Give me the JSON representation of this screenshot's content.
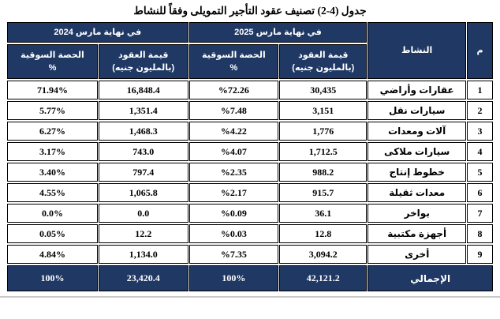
{
  "page": {
    "title": "جدول (4-2) تصنيف عقود التأجير التمويلى وفقاً للنشاط"
  },
  "table": {
    "headers": {
      "serial": "م",
      "activity": "النشاط",
      "period_2025": "في نهاية مارس 2025",
      "period_2024": "في نهاية مارس 2024",
      "value_line1": "قيمة العقود",
      "value_line2": "(بالمليون جنيه)",
      "share_line1": "الحصة السوقية",
      "share_line2": "%"
    },
    "rows": [
      {
        "no": "1",
        "activity": "عقارات وأراضي",
        "value_2025": "30,435",
        "share_2025": "%72.26",
        "value_2024": "16,848.4",
        "share_2024": "71.94%"
      },
      {
        "no": "2",
        "activity": "سيارات نقل",
        "value_2025": "3,151",
        "share_2025": "%7.48",
        "value_2024": "1,351.4",
        "share_2024": "5.77%"
      },
      {
        "no": "3",
        "activity": "آلات ومعدات",
        "value_2025": "1,776",
        "share_2025": "%4.22",
        "value_2024": "1,468.3",
        "share_2024": "6.27%"
      },
      {
        "no": "4",
        "activity": "سيارات ملاكى",
        "value_2025": "1,712.5",
        "share_2025": "%4.07",
        "value_2024": "743.0",
        "share_2024": "3.17%"
      },
      {
        "no": "5",
        "activity": "خطوط إنتاج",
        "value_2025": "988.2",
        "share_2025": "%2.35",
        "value_2024": "797.4",
        "share_2024": "3.40%"
      },
      {
        "no": "6",
        "activity": "معدات ثقيلة",
        "value_2025": "915.7",
        "share_2025": "%2.17",
        "value_2024": "1,065.8",
        "share_2024": "4.55%"
      },
      {
        "no": "7",
        "activity": "بواخر",
        "value_2025": "36.1",
        "share_2025": "%0.09",
        "value_2024": "0.0",
        "share_2024": "0.0%"
      },
      {
        "no": "8",
        "activity": "أجهزة مكتبية",
        "value_2025": "12.8",
        "share_2025": "%0.03",
        "value_2024": "12.2",
        "share_2024": "0.05%"
      },
      {
        "no": "9",
        "activity": "أخرى",
        "value_2025": "3,094.2",
        "share_2025": "%7.35",
        "value_2024": "1,134.0",
        "share_2024": "4.84%"
      }
    ],
    "total": {
      "label": "الإجمالي",
      "value_2025": "42,121.2",
      "share_2025": "100%",
      "value_2024": "23,420.4",
      "share_2024": "100%"
    }
  },
  "colors": {
    "header_bg": "#1f3864",
    "header_text": "#ffffff",
    "border": "#000000",
    "body_text": "#000000"
  }
}
